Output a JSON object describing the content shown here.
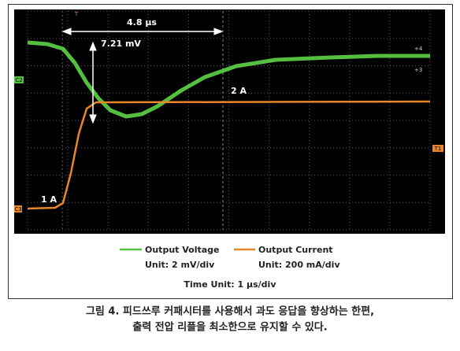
{
  "scope": {
    "annotations": {
      "time_span": "4.8 μs",
      "voltage_dip": "7.21 mV",
      "high_current": "2 A",
      "low_current": "1 A"
    },
    "markers": {
      "ch2": "C2",
      "ch3": "C3",
      "trigger": "T",
      "trigger_level": "T1",
      "cursor4": "+4",
      "cursor3": "+3"
    }
  },
  "legend": {
    "items": [
      {
        "name": "Output Voltage",
        "unit": "Unit: 2 mV/div"
      },
      {
        "name": "Output Current",
        "unit": "Unit: 200 mA/div"
      }
    ],
    "time_unit": "Time Unit: 1 μs/div"
  },
  "caption": {
    "lines": [
      "그림 4. 피드쓰루 커패시터를 사용해서 과도 응답을 향상하는 한편,",
      "출력 전압 리플을 최소한으로 유지할 수 있다."
    ]
  }
}
